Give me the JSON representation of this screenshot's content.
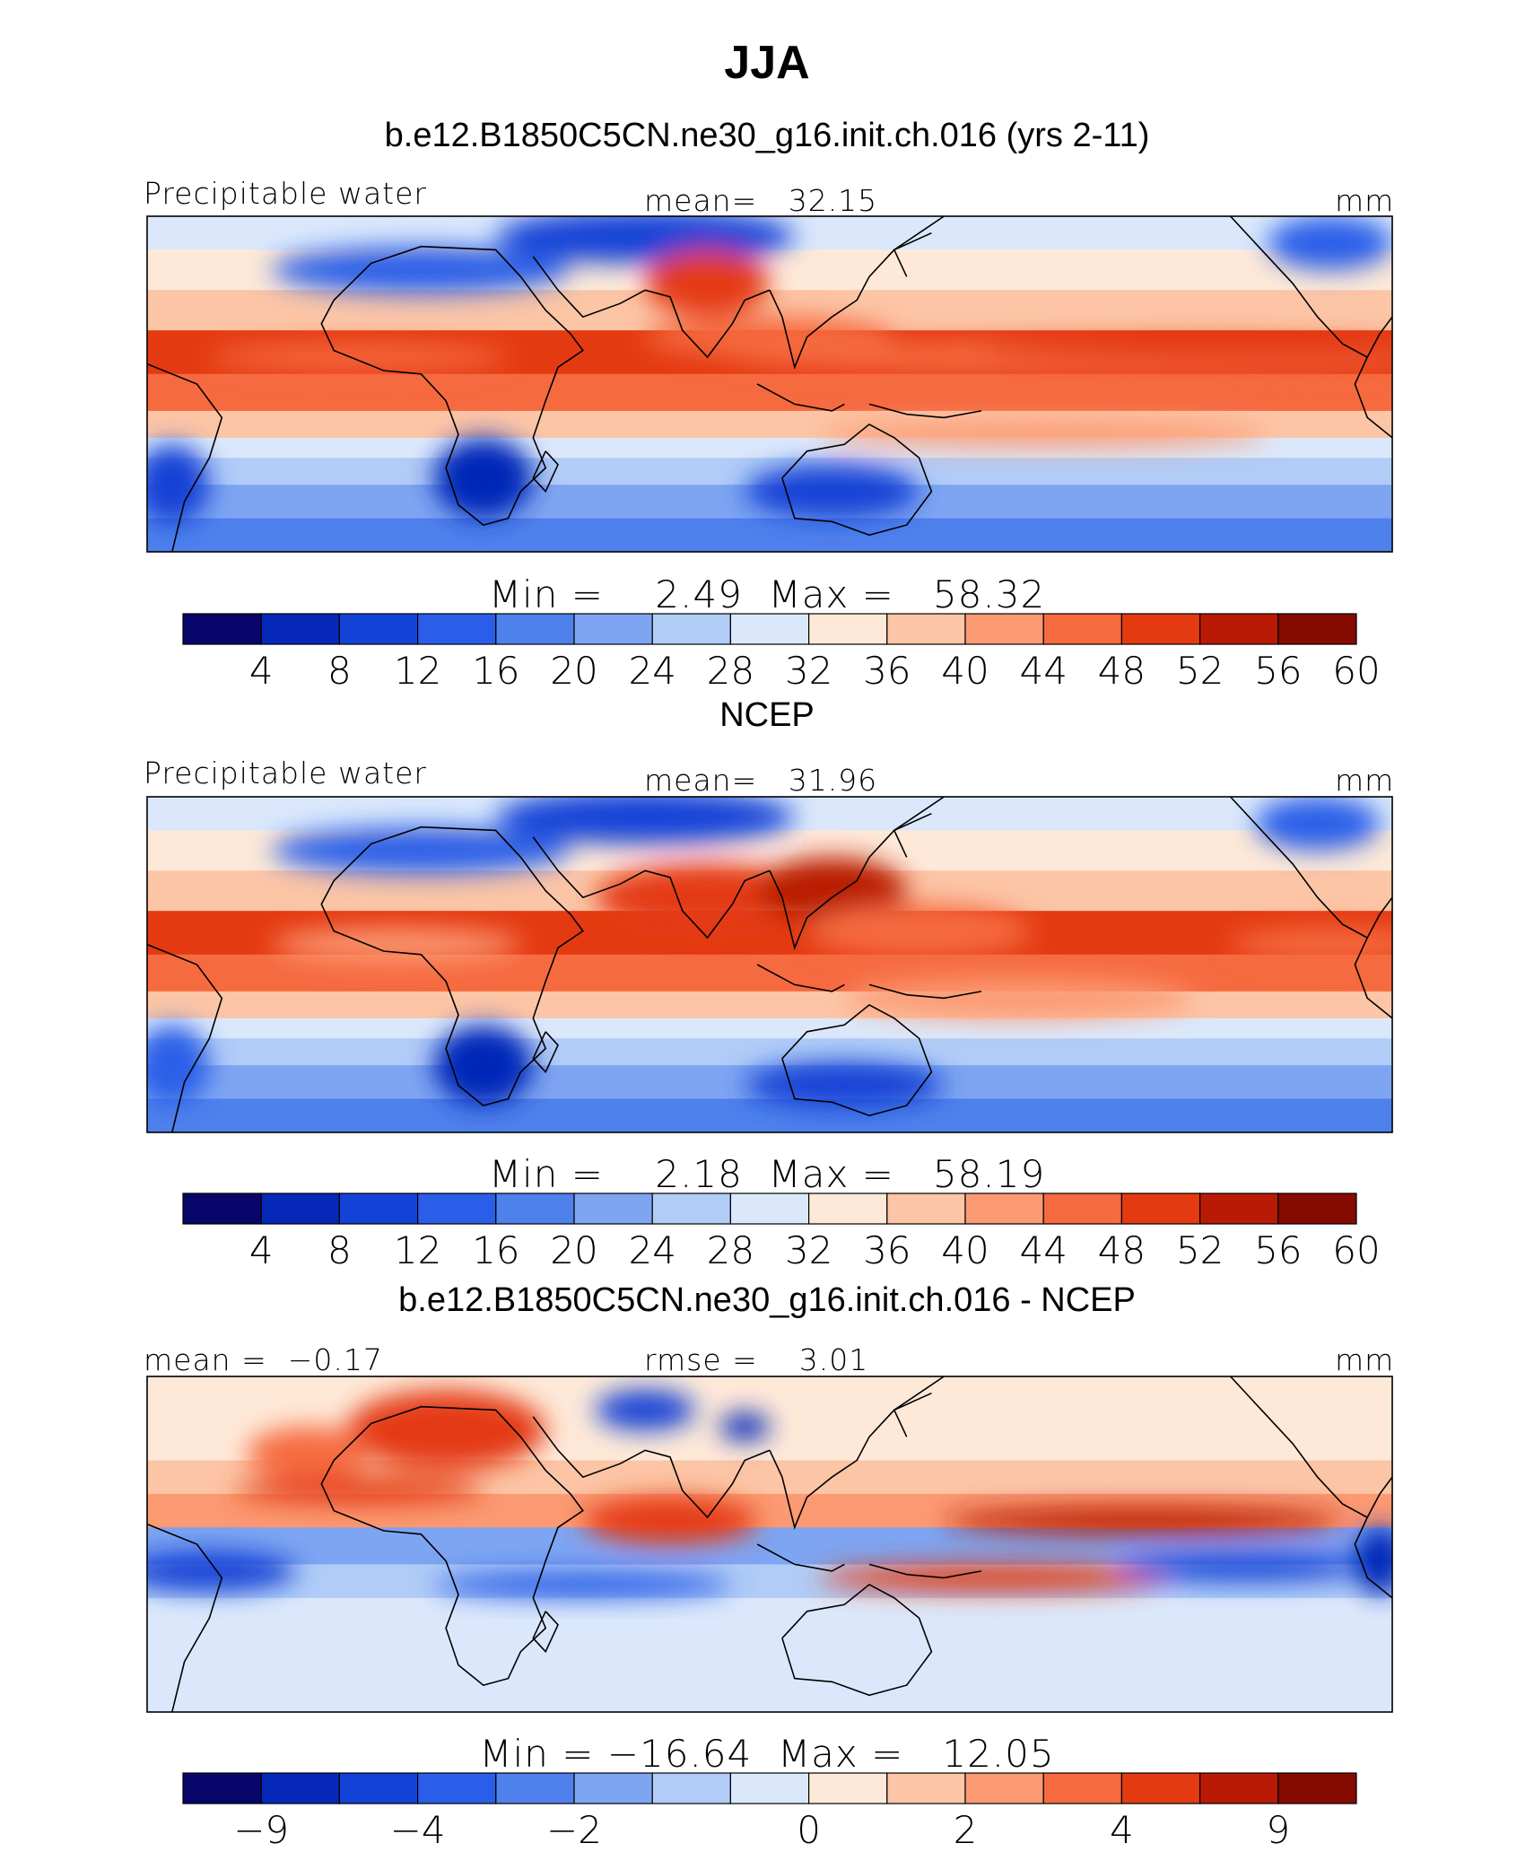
{
  "title": "JJA",
  "panels": [
    {
      "subtitle": "b.e12.B1850C5CN.ne30_g16.init.ch.016 (yrs 2-11)",
      "left_label": "Precipitable water",
      "center_label": "mean=   32.15",
      "right_label": "mm",
      "minmax": "Min =    2.49  Max =   58.32",
      "colorbar_ticks": [
        "4",
        "8",
        "12",
        "16",
        "20",
        "24",
        "28",
        "32",
        "36",
        "40",
        "44",
        "48",
        "52",
        "56",
        "60"
      ]
    },
    {
      "subtitle": "NCEP",
      "left_label": "Precipitable water",
      "center_label": "mean=   31.96",
      "right_label": "mm",
      "minmax": "Min =    2.18  Max =   58.19",
      "colorbar_ticks": [
        "4",
        "8",
        "12",
        "16",
        "20",
        "24",
        "28",
        "32",
        "36",
        "40",
        "44",
        "48",
        "52",
        "56",
        "60"
      ]
    },
    {
      "subtitle": "b.e12.B1850C5CN.ne30_g16.init.ch.016 - NCEP",
      "left_label": "mean =  −0.17",
      "center_label": "rmse =    3.01",
      "right_label": "mm",
      "minmax": "Min = −16.64  Max =   12.05",
      "colorbar_ticks": [
        "−9",
        "−4",
        "−2",
        "0",
        "2",
        "4",
        "9"
      ]
    }
  ],
  "palette": [
    "#08056b",
    "#0628b8",
    "#1343d6",
    "#2a5ee8",
    "#4f81ec",
    "#7ea5f2",
    "#b1ccf7",
    "#dbe8fb",
    "#fee9d8",
    "#fcc5a6",
    "#fb9a73",
    "#f66a40",
    "#e43a12",
    "#b91a06",
    "#850b00"
  ],
  "chart_data": [
    {
      "type": "heatmap",
      "title": "b.e12.B1850C5CN.ne30_g16.init.ch.016 (yrs 2-11)",
      "variable": "Precipitable water",
      "units": "mm",
      "mean": 32.15,
      "min": 2.49,
      "max": 58.32,
      "contour_levels": [
        4,
        8,
        12,
        16,
        20,
        24,
        28,
        32,
        36,
        40,
        44,
        48,
        52,
        56,
        60
      ]
    },
    {
      "type": "heatmap",
      "title": "NCEP",
      "variable": "Precipitable water",
      "units": "mm",
      "mean": 31.96,
      "min": 2.18,
      "max": 58.19,
      "contour_levels": [
        4,
        8,
        12,
        16,
        20,
        24,
        28,
        32,
        36,
        40,
        44,
        48,
        52,
        56,
        60
      ]
    },
    {
      "type": "heatmap",
      "title": "b.e12.B1850C5CN.ne30_g16.init.ch.016 - NCEP",
      "units": "mm",
      "mean": -0.17,
      "rmse": 3.01,
      "min": -16.64,
      "max": 12.05,
      "contour_levels": [
        -9,
        -4,
        -2,
        0,
        2,
        4,
        9
      ]
    }
  ]
}
